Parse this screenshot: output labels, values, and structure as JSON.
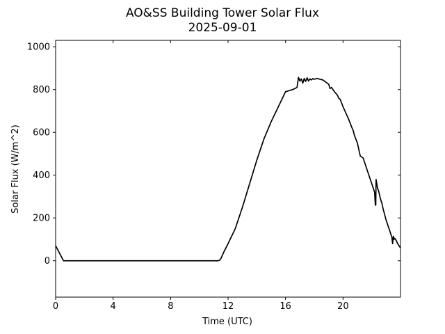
{
  "chart_data": {
    "type": "line",
    "title": "AO&SS Building Tower Solar Flux",
    "subtitle": "2025-09-01",
    "xlabel": "Time (UTC)",
    "ylabel": "Solar Flux (W/m^2)",
    "xlim": [
      0,
      24
    ],
    "ylim": [
      -170,
      1030
    ],
    "xticks": [
      0,
      4,
      8,
      12,
      16,
      20
    ],
    "yticks": [
      0,
      200,
      400,
      600,
      800,
      1000
    ],
    "grid": false,
    "line_color": "#000000",
    "series": [
      {
        "x": [
          0,
          0.55,
          11.3,
          11.4,
          11.5,
          11.7,
          12.0,
          12.5,
          13.0,
          13.5,
          14.0,
          14.5,
          15.0,
          15.5,
          16.0,
          16.5,
          16.8,
          16.9,
          17.0,
          17.1,
          17.2,
          17.3,
          17.4,
          17.5,
          17.6,
          17.7,
          17.8,
          17.9,
          18.0,
          18.2,
          18.4,
          18.6,
          18.8,
          19.0,
          19.1,
          19.2,
          19.4,
          19.6,
          19.7,
          19.8,
          20.0,
          20.2,
          20.4,
          20.6,
          20.7,
          20.8,
          21.0,
          21.2,
          21.4,
          21.5,
          21.6,
          21.8,
          22.0,
          22.1,
          22.2,
          22.25,
          22.28,
          22.3,
          22.4,
          22.5,
          22.6,
          22.7,
          22.8,
          23.0,
          23.2,
          23.4,
          23.45,
          23.5,
          23.55,
          23.6,
          23.7,
          23.8,
          24.0
        ],
        "y": [
          70,
          0,
          0,
          2,
          10,
          40,
          80,
          150,
          250,
          360,
          470,
          570,
          650,
          720,
          790,
          800,
          810,
          857,
          840,
          850,
          830,
          852,
          838,
          855,
          840,
          850,
          845,
          851,
          848,
          852,
          848,
          845,
          835,
          825,
          805,
          810,
          790,
          775,
          760,
          755,
          720,
          690,
          660,
          625,
          610,
          585,
          550,
          490,
          480,
          460,
          440,
          400,
          360,
          340,
          320,
          260,
          260,
          380,
          340,
          320,
          290,
          270,
          240,
          190,
          150,
          110,
          80,
          115,
          100,
          105,
          95,
          80,
          60
        ]
      }
    ]
  }
}
